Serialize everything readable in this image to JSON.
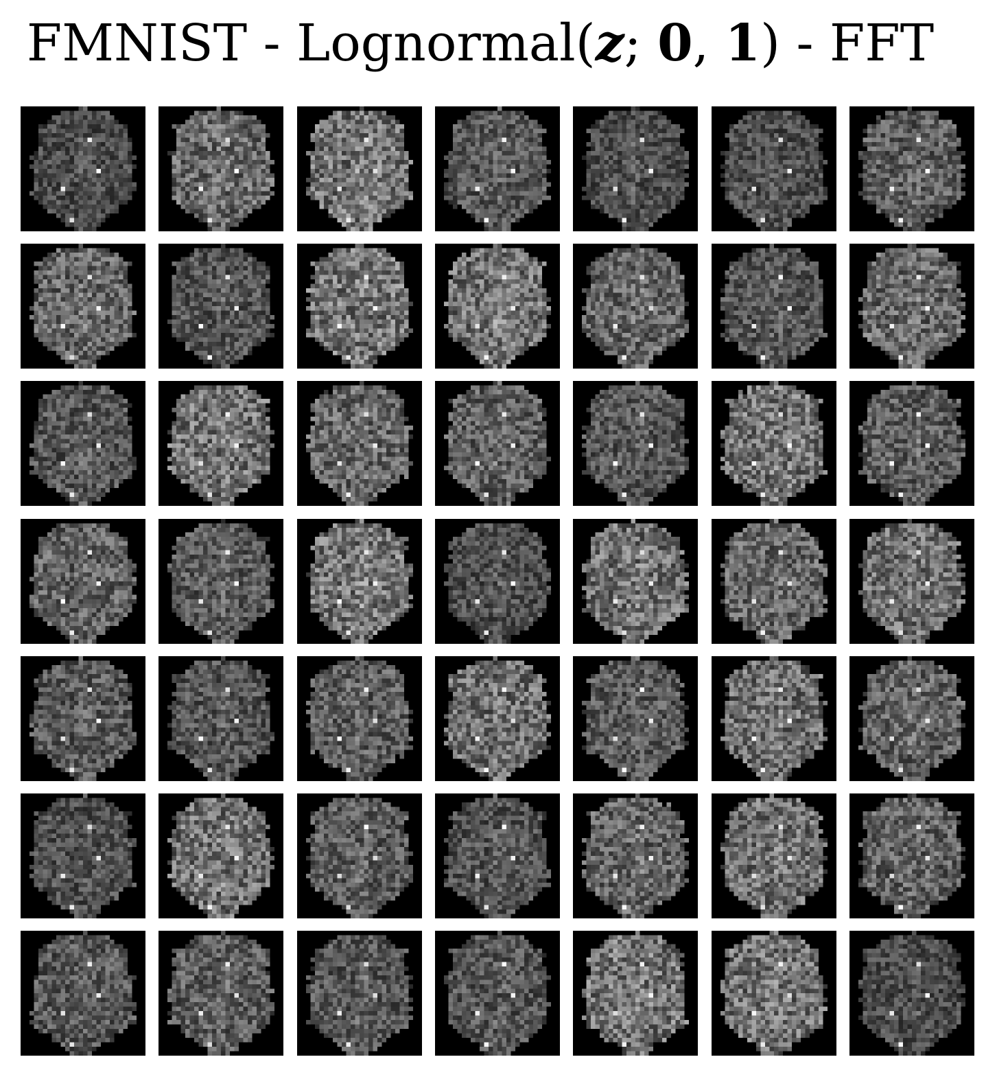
{
  "figure": {
    "title_parts": [
      "FMNIST - Lognormal(",
      "z",
      "; ",
      "0",
      ", ",
      "1",
      ") - FFT"
    ],
    "grid": {
      "rows": 7,
      "cols": 7,
      "image_resolution": 28,
      "colormap": "grayscale",
      "background_color": "#000000",
      "page_color": "#ffffff"
    }
  }
}
